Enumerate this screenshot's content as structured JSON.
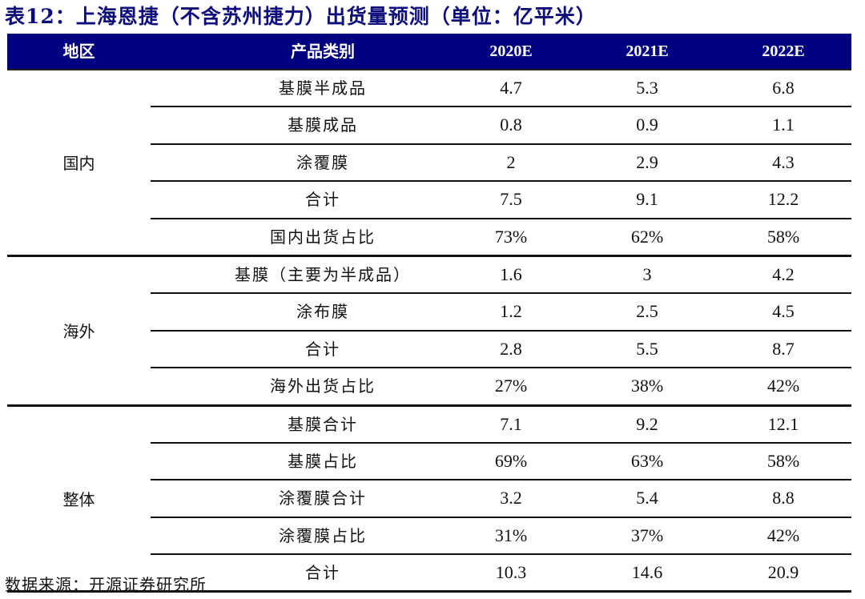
{
  "title": "表12：上海恩捷（不含苏州捷力）出货量预测（单位：亿平米）",
  "header": {
    "region": "地区",
    "category": "产品类别",
    "years": [
      "2020E",
      "2021E",
      "2022E"
    ]
  },
  "colors": {
    "header_bg": "#000080",
    "header_text": "#ffffff",
    "title": "#0c0c7a"
  },
  "sections": [
    {
      "region": "国内",
      "rows": [
        {
          "category": "基膜半成品",
          "values": [
            "4.7",
            "5.3",
            "6.8"
          ]
        },
        {
          "category": "基膜成品",
          "values": [
            "0.8",
            "0.9",
            "1.1"
          ]
        },
        {
          "category": "涂覆膜",
          "values": [
            "2",
            "2.9",
            "4.3"
          ]
        },
        {
          "category": "合计",
          "values": [
            "7.5",
            "9.1",
            "12.2"
          ]
        },
        {
          "category": "国内出货占比",
          "values": [
            "73%",
            "62%",
            "58%"
          ]
        }
      ]
    },
    {
      "region": "海外",
      "rows": [
        {
          "category": "基膜（主要为半成品）",
          "values": [
            "1.6",
            "3",
            "4.2"
          ]
        },
        {
          "category": "涂布膜",
          "values": [
            "1.2",
            "2.5",
            "4.5"
          ]
        },
        {
          "category": "合计",
          "values": [
            "2.8",
            "5.5",
            "8.7"
          ]
        },
        {
          "category": "海外出货占比",
          "values": [
            "27%",
            "38%",
            "42%"
          ]
        }
      ]
    },
    {
      "region": "整体",
      "rows": [
        {
          "category": "基膜合计",
          "values": [
            "7.1",
            "9.2",
            "12.1"
          ]
        },
        {
          "category": "基膜占比",
          "values": [
            "69%",
            "63%",
            "58%"
          ]
        },
        {
          "category": "涂覆膜合计",
          "values": [
            "3.2",
            "5.4",
            "8.8"
          ]
        },
        {
          "category": "涂覆膜占比",
          "values": [
            "31%",
            "37%",
            "42%"
          ]
        },
        {
          "category": "合计",
          "values": [
            "10.3",
            "14.6",
            "20.9"
          ]
        }
      ]
    }
  ],
  "source": "数据来源：开源证券研究所"
}
